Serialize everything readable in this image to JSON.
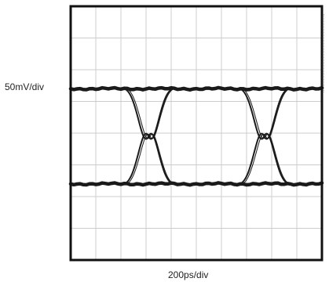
{
  "chart_data": {
    "type": "line",
    "title": "",
    "description_type": "eye-diagram",
    "xlabel": "200ps/div",
    "ylabel": "50mV/div",
    "grid": true,
    "grid_divisions": {
      "x": 10,
      "y": 8
    },
    "levels": {
      "high": 5.4,
      "low": 2.4
    },
    "crossings_x": [
      3.1,
      7.7
    ],
    "eye_span_x": [
      0,
      10
    ],
    "ylim": [
      0,
      8
    ],
    "xlim": [
      0,
      10
    ],
    "trace_color": "#1a1a1a",
    "grid_color": "#cccccc",
    "frame_color": "#111111"
  }
}
